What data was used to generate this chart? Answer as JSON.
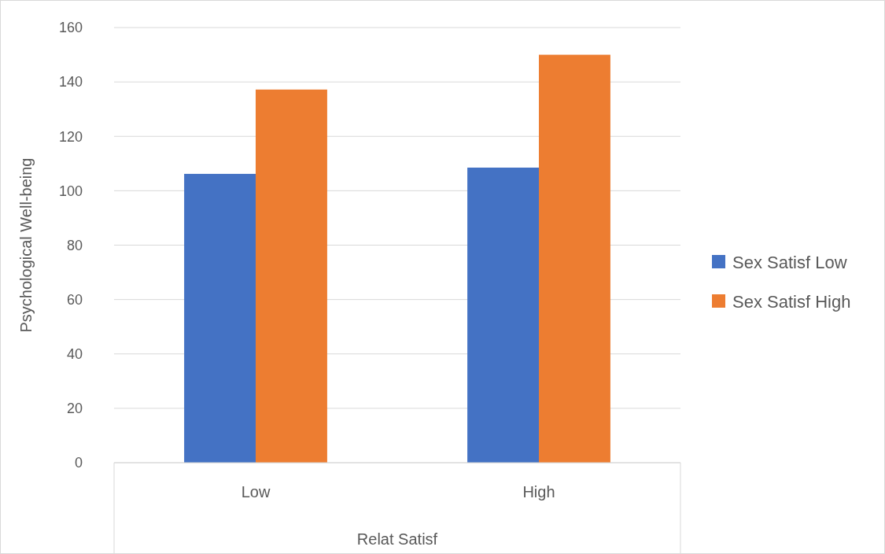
{
  "chart_data": {
    "type": "bar",
    "xlabel": "Relat Satisf",
    "ylabel": "Psychological Well-being",
    "categories": [
      "Low",
      "High"
    ],
    "series": [
      {
        "name": "Sex Satisf Low",
        "color": "#4472c4",
        "values": [
          106.2,
          108.5
        ]
      },
      {
        "name": "Sex Satisf High",
        "color": "#ed7d31",
        "values": [
          137.2,
          150
        ]
      }
    ],
    "ylim": [
      0,
      160
    ],
    "yticks": [
      0,
      20,
      40,
      60,
      80,
      100,
      120,
      140,
      160
    ],
    "grid": "y",
    "legend": "right"
  }
}
